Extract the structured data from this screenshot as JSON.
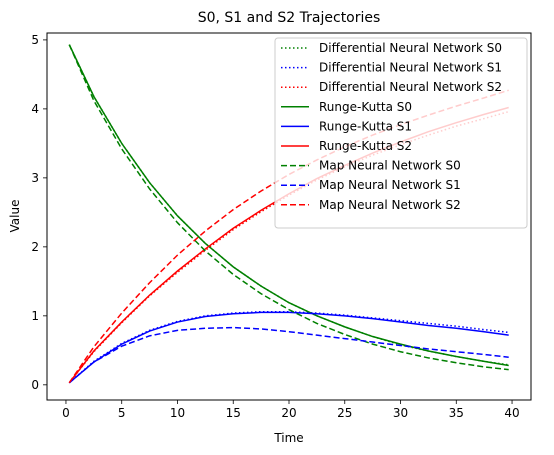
{
  "chart_data": {
    "type": "line",
    "title": "S0, S1 and S2 Trajectories",
    "xlabel": "Time",
    "ylabel": "Value",
    "xlim": [
      -1.7,
      41.7
    ],
    "ylim": [
      -0.22,
      5.1
    ],
    "xticks": [
      0,
      5,
      10,
      15,
      20,
      25,
      30,
      35,
      40
    ],
    "yticks": [
      0,
      1,
      2,
      3,
      4,
      5
    ],
    "grid": false,
    "legend_position": "top-right",
    "x": [
      0.3,
      2.5,
      5,
      7.5,
      10,
      12.5,
      15,
      17.5,
      20,
      22.5,
      25,
      27.5,
      30,
      32.5,
      35,
      37.5,
      39.7
    ],
    "series": [
      {
        "name": "Differential Neural Network S0",
        "color": "#008000",
        "style": "dotted",
        "values": [
          4.93,
          4.18,
          3.5,
          2.93,
          2.45,
          2.05,
          1.71,
          1.43,
          1.19,
          1.0,
          0.84,
          0.7,
          0.58,
          0.49,
          0.41,
          0.34,
          0.29
        ]
      },
      {
        "name": "Differential Neural Network S1",
        "color": "#0000ff",
        "style": "dotted",
        "values": [
          0.03,
          0.34,
          0.6,
          0.79,
          0.92,
          1.0,
          1.04,
          1.06,
          1.06,
          1.04,
          1.01,
          0.97,
          0.93,
          0.89,
          0.85,
          0.8,
          0.76
        ]
      },
      {
        "name": "Differential Neural Network S2",
        "color": "#ff0000",
        "style": "dotted",
        "values": [
          0.03,
          0.48,
          0.9,
          1.29,
          1.63,
          1.95,
          2.25,
          2.51,
          2.75,
          2.97,
          3.16,
          3.33,
          3.48,
          3.62,
          3.75,
          3.86,
          3.96
        ]
      },
      {
        "name": "Runge-Kutta S0",
        "color": "#008000",
        "style": "solid",
        "values": [
          4.93,
          4.18,
          3.5,
          2.93,
          2.45,
          2.05,
          1.71,
          1.43,
          1.19,
          1.0,
          0.84,
          0.7,
          0.59,
          0.49,
          0.41,
          0.34,
          0.28
        ]
      },
      {
        "name": "Runge-Kutta S1",
        "color": "#0000ff",
        "style": "solid",
        "values": [
          0.03,
          0.33,
          0.59,
          0.78,
          0.91,
          0.99,
          1.03,
          1.05,
          1.05,
          1.03,
          1.0,
          0.96,
          0.91,
          0.86,
          0.82,
          0.77,
          0.72
        ]
      },
      {
        "name": "Runge-Kutta S2",
        "color": "#ff0000",
        "style": "solid",
        "values": [
          0.03,
          0.49,
          0.91,
          1.3,
          1.65,
          1.97,
          2.27,
          2.53,
          2.77,
          2.99,
          3.18,
          3.36,
          3.52,
          3.67,
          3.8,
          3.92,
          4.02
        ]
      },
      {
        "name": "Map Neural Network S0",
        "color": "#008000",
        "style": "dashed",
        "values": [
          4.93,
          4.12,
          3.42,
          2.84,
          2.35,
          1.94,
          1.6,
          1.32,
          1.09,
          0.89,
          0.73,
          0.59,
          0.48,
          0.39,
          0.32,
          0.26,
          0.22
        ]
      },
      {
        "name": "Map Neural Network S1",
        "color": "#0000ff",
        "style": "dashed",
        "values": [
          0.03,
          0.33,
          0.56,
          0.71,
          0.79,
          0.82,
          0.83,
          0.81,
          0.77,
          0.72,
          0.67,
          0.62,
          0.57,
          0.52,
          0.48,
          0.44,
          0.4
        ]
      },
      {
        "name": "Map Neural Network S2",
        "color": "#ff0000",
        "style": "dashed",
        "values": [
          0.03,
          0.55,
          1.04,
          1.48,
          1.88,
          2.23,
          2.54,
          2.81,
          3.05,
          3.26,
          3.45,
          3.62,
          3.77,
          3.91,
          4.04,
          4.16,
          4.27
        ]
      }
    ]
  }
}
